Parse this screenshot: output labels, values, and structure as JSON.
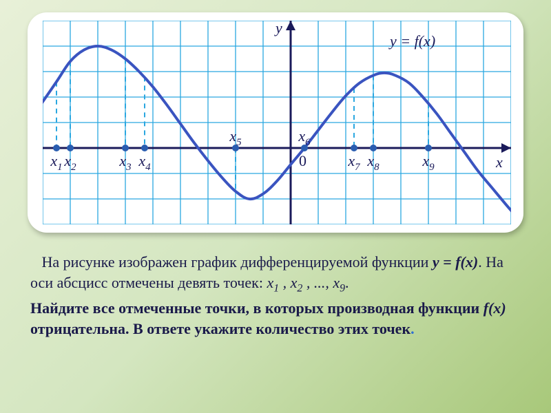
{
  "chart": {
    "type": "line",
    "background_color": "#ffffff",
    "grid_color": "#2aa7e0",
    "grid_major_color": "#2aa7e0",
    "axis_color": "#1a1a5a",
    "curve_color": "#3a54c0",
    "curve_width": 4,
    "dashed_color": "#2aa7e0",
    "dashed_width": 2,
    "point_color": "#2a5db0",
    "point_radius": 5,
    "label_color": "#1a1a5a",
    "label_fontsize": 22,
    "equation_color": "#1a1a5a",
    "equation_fontsize": 22,
    "xlim": [
      -9,
      8
    ],
    "ylim": [
      -3,
      5
    ],
    "cell_size": 40,
    "axis_labels": {
      "y": "y",
      "x": "x",
      "origin": "0"
    },
    "equation": "y = f(x)",
    "curve_points": [
      [
        -9.2,
        1.5
      ],
      [
        -8.5,
        2.6
      ],
      [
        -8,
        3.4
      ],
      [
        -7.5,
        3.85
      ],
      [
        -7,
        4.0
      ],
      [
        -6.5,
        3.85
      ],
      [
        -6,
        3.5
      ],
      [
        -5.5,
        3.0
      ],
      [
        -5,
        2.4
      ],
      [
        -4.5,
        1.7
      ],
      [
        -4,
        0.95
      ],
      [
        -3.5,
        0.2
      ],
      [
        -3,
        -0.5
      ],
      [
        -2.5,
        -1.15
      ],
      [
        -2,
        -1.7
      ],
      [
        -1.5,
        -2.0
      ],
      [
        -1,
        -1.8
      ],
      [
        -0.5,
        -1.3
      ],
      [
        0,
        -0.65
      ],
      [
        0.5,
        0.0
      ],
      [
        1,
        0.7
      ],
      [
        1.5,
        1.4
      ],
      [
        2,
        2.05
      ],
      [
        2.5,
        2.55
      ],
      [
        3,
        2.85
      ],
      [
        3.4,
        2.95
      ],
      [
        3.8,
        2.85
      ],
      [
        4.3,
        2.55
      ],
      [
        4.8,
        2.0
      ],
      [
        5.3,
        1.35
      ],
      [
        5.8,
        0.6
      ],
      [
        6.3,
        -0.15
      ],
      [
        6.8,
        -0.9
      ],
      [
        7.3,
        -1.55
      ],
      [
        7.8,
        -2.2
      ],
      [
        8.2,
        -2.7
      ]
    ],
    "points": [
      {
        "label": "x1",
        "x": -8.5,
        "y_on_curve": 2.6
      },
      {
        "label": "x2",
        "x": -8,
        "y_on_curve": 3.4
      },
      {
        "label": "x3",
        "x": -6,
        "y_on_curve": 3.5
      },
      {
        "label": "x4",
        "x": -5.3,
        "y_on_curve": 2.8
      },
      {
        "label": "x5",
        "x": -2,
        "y_on_curve": -1.7
      },
      {
        "label": "x6",
        "x": 0.5,
        "y_on_curve": 0.0
      },
      {
        "label": "x7",
        "x": 2.3,
        "y_on_curve": 2.35
      },
      {
        "label": "x8",
        "x": 3.0,
        "y_on_curve": 2.85
      },
      {
        "label": "x9",
        "x": 5.0,
        "y_on_curve": 1.75
      }
    ]
  },
  "text": {
    "p1a": "На рисунке изображен график дифференцируемой функции ",
    "p1b": ". На оси абсцисс отмечены девять точек: ",
    "fn": "y = f(x)",
    "pts_seq": "x₁ , x₂ , ..., x₉",
    "p1c": ".",
    "p2a": "Найдите все отмеченные точки, в которых производная функции ",
    "fx": "f(x)",
    "p2b": " отрицательна. В ответе укажите количество этих точек",
    "p2c": "."
  }
}
